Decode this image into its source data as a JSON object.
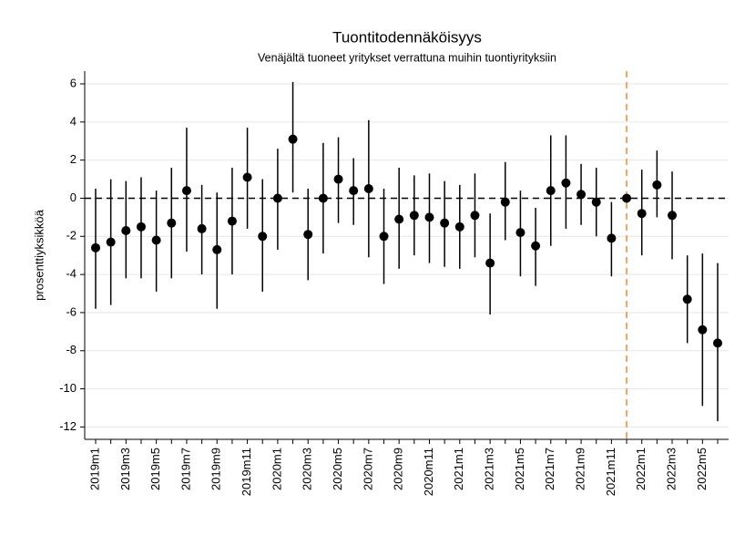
{
  "chart_data": {
    "type": "errorbar",
    "title": "Tuontitodennäköisyys",
    "subtitle": "Venäjältä tuoneet yritykset verrattuna muihin tuontiyrityksiin",
    "ylabel": "prosenttiyksikköä",
    "categories": [
      "2019m1",
      null,
      "2019m3",
      null,
      "2019m5",
      null,
      "2019m7",
      null,
      "2019m9",
      null,
      "2019m11",
      null,
      "2020m1",
      null,
      "2020m3",
      null,
      "2020m5",
      null,
      "2020m7",
      null,
      "2020m9",
      null,
      "2020m11",
      null,
      "2021m1",
      null,
      "2021m3",
      null,
      "2021m5",
      null,
      "2021m7",
      null,
      "2021m9",
      null,
      "2021m11",
      null,
      "2022m1",
      null,
      "2022m3",
      null,
      "2022m5",
      null
    ],
    "series": [
      {
        "color": "#000000",
        "values": [
          -2.6,
          -2.3,
          -1.7,
          -1.5,
          -2.2,
          -1.3,
          0.4,
          -1.6,
          -2.7,
          -1.2,
          1.1,
          -2.0,
          0.0,
          3.1,
          -1.9,
          0.0,
          1.0,
          0.4,
          0.5,
          -2.0,
          -1.1,
          -0.9,
          -1.0,
          -1.3,
          -1.5,
          -0.9,
          -3.4,
          -0.2,
          -1.8,
          -2.5,
          0.4,
          0.8,
          0.2,
          -0.2,
          -2.1,
          0.0,
          -0.8,
          0.7,
          -0.9,
          -5.3,
          -6.9,
          -7.6
        ],
        "lower": [
          -5.8,
          -5.6,
          -4.2,
          -4.2,
          -4.9,
          -4.2,
          -2.8,
          -4.0,
          -5.8,
          -4.0,
          -1.6,
          -4.9,
          -2.7,
          0.3,
          -4.3,
          -2.9,
          -1.3,
          -1.4,
          -3.1,
          -4.5,
          -3.7,
          -3.0,
          -3.4,
          -3.6,
          -3.7,
          -3.1,
          -6.1,
          -2.2,
          -4.1,
          -4.6,
          -2.5,
          -1.6,
          -1.4,
          -2.0,
          -4.1,
          null,
          -3.0,
          -1.0,
          -3.2,
          -7.6,
          -10.9,
          -11.7
        ],
        "upper": [
          0.5,
          1.0,
          0.9,
          1.1,
          0.4,
          1.6,
          3.7,
          0.7,
          0.3,
          1.6,
          3.7,
          1.0,
          2.6,
          6.1,
          0.5,
          2.9,
          3.2,
          2.1,
          4.1,
          0.5,
          1.6,
          1.2,
          1.3,
          0.9,
          0.7,
          1.3,
          -0.8,
          1.9,
          0.4,
          -0.5,
          3.3,
          3.3,
          1.8,
          1.6,
          -0.2,
          null,
          1.5,
          2.5,
          1.4,
          -3.0,
          -2.9,
          -3.4
        ]
      }
    ],
    "ylim": [
      -12.65,
      6.67
    ],
    "yticks": [
      6,
      4,
      2,
      0,
      -2,
      -4,
      -6,
      -8,
      -10,
      -12
    ],
    "grid": true,
    "hline": 0,
    "vline": {
      "index": 35,
      "color": "#f4a460"
    }
  }
}
